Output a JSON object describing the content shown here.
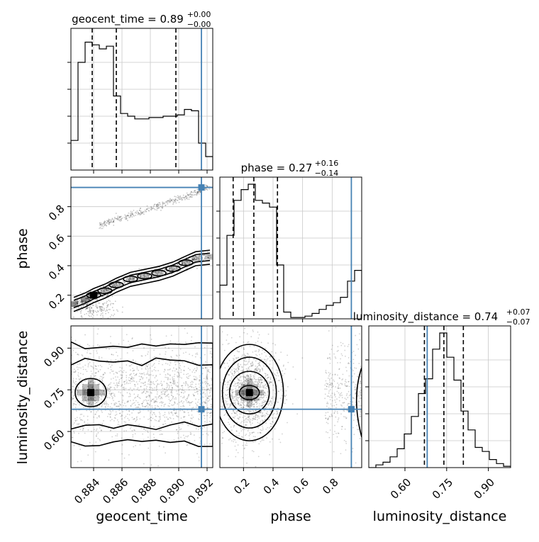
{
  "chart_data": {
    "type": "corner",
    "parameters": [
      "geocent_time",
      "phase",
      "luminosity_distance"
    ],
    "axis_labels": [
      "geocent_time",
      "phase",
      "luminosity_distance"
    ],
    "truths": {
      "geocent_time": 0.8916,
      "phase": 0.93,
      "luminosity_distance": 0.68
    },
    "truth_color": "#4682b4",
    "grid": true,
    "panels": [
      {
        "id": "hist-geocent_time",
        "row": 0,
        "col": 0,
        "kind": "histogram",
        "title": {
          "prefix": "geocent_time = 0.89",
          "sup": "+0.00",
          "sub": "−0.00"
        },
        "xlim": [
          0.8824,
          0.8924
        ],
        "bin_edges": [
          0.8824,
          0.8829,
          0.8834,
          0.8839,
          0.8844,
          0.8849,
          0.8854,
          0.8859,
          0.8864,
          0.8869,
          0.8874,
          0.8879,
          0.8884,
          0.8889,
          0.8894,
          0.8899,
          0.8904,
          0.8909,
          0.8914,
          0.8919,
          0.8924
        ],
        "counts": [
          0.22,
          0.8,
          0.95,
          0.93,
          0.9,
          0.92,
          0.55,
          0.42,
          0.4,
          0.38,
          0.38,
          0.39,
          0.39,
          0.4,
          0.4,
          0.41,
          0.45,
          0.44,
          0.2,
          0.1
        ],
        "quantiles": [
          0.8839,
          0.8856,
          0.8898
        ]
      },
      {
        "id": "hist-phase",
        "row": 1,
        "col": 1,
        "kind": "histogram",
        "title": {
          "prefix": "phase = 0.27",
          "sup": "+0.16",
          "sub": "−0.14"
        },
        "xlim": [
          0.04,
          1.0
        ],
        "bin_edges": [
          0.04,
          0.088,
          0.136,
          0.184,
          0.232,
          0.28,
          0.328,
          0.376,
          0.424,
          0.472,
          0.52,
          0.568,
          0.616,
          0.664,
          0.712,
          0.76,
          0.808,
          0.856,
          0.904,
          0.952,
          1.0
        ],
        "counts": [
          0.25,
          0.62,
          0.88,
          0.96,
          1.0,
          0.88,
          0.86,
          0.83,
          0.4,
          0.05,
          0.01,
          0.01,
          0.02,
          0.04,
          0.07,
          0.1,
          0.12,
          0.16,
          0.28,
          0.36
        ],
        "quantiles": [
          0.13,
          0.27,
          0.43
        ],
        "xticks": [
          0.2,
          0.4,
          0.6,
          0.8
        ]
      },
      {
        "id": "hist-luminosity_distance",
        "row": 2,
        "col": 2,
        "kind": "histogram",
        "title": {
          "prefix": "luminosity_distance = 0.74",
          "sup": "+0.07",
          "sub": "−0.07"
        },
        "xlim": [
          0.47,
          0.98
        ],
        "bin_edges": [
          0.47,
          0.4955,
          0.521,
          0.5465,
          0.572,
          0.5975,
          0.623,
          0.6485,
          0.674,
          0.6995,
          0.725,
          0.7505,
          0.776,
          0.8015,
          0.827,
          0.8525,
          0.878,
          0.9035,
          0.929,
          0.9545,
          0.98
        ],
        "counts": [
          0.0,
          0.02,
          0.04,
          0.08,
          0.14,
          0.25,
          0.38,
          0.55,
          0.66,
          0.88,
          1.0,
          0.82,
          0.65,
          0.42,
          0.28,
          0.15,
          0.12,
          0.06,
          0.03,
          0.01
        ],
        "quantiles": [
          0.67,
          0.74,
          0.81
        ],
        "xticks": [
          0.6,
          0.75,
          0.9
        ],
        "xticklabels": [
          "0.60",
          "0.75",
          "0.90"
        ]
      },
      {
        "id": "2d-phase-vs-geocent_time",
        "row": 1,
        "col": 0,
        "kind": "2d",
        "xlim": [
          0.8824,
          0.8924
        ],
        "ylim": [
          0.04,
          1.0
        ],
        "yticks": [
          0.2,
          0.4,
          0.6,
          0.8
        ],
        "peak": [
          0.884,
          0.2
        ],
        "ridge": [
          [
            0.8826,
            0.14
          ],
          [
            0.8834,
            0.17
          ],
          [
            0.884,
            0.2
          ],
          [
            0.8848,
            0.23
          ],
          [
            0.8856,
            0.27
          ],
          [
            0.8866,
            0.31
          ],
          [
            0.8876,
            0.33
          ],
          [
            0.8886,
            0.35
          ],
          [
            0.8896,
            0.38
          ],
          [
            0.8905,
            0.42
          ],
          [
            0.8912,
            0.45
          ],
          [
            0.8922,
            0.46
          ]
        ],
        "upper_band": [
          [
            0.8844,
            0.67
          ],
          [
            0.8856,
            0.72
          ],
          [
            0.887,
            0.75
          ],
          [
            0.8884,
            0.8
          ],
          [
            0.8898,
            0.85
          ],
          [
            0.8912,
            0.89
          ],
          [
            0.8922,
            0.94
          ]
        ]
      },
      {
        "id": "2d-luminosity_distance-vs-geocent_time",
        "row": 2,
        "col": 0,
        "kind": "2d",
        "xlim": [
          0.8824,
          0.8924
        ],
        "ylim": [
          0.47,
          0.98
        ],
        "xticks": [
          0.884,
          0.886,
          0.888,
          0.89,
          0.892
        ],
        "xticklabels": [
          "0.884",
          "0.886",
          "0.888",
          "0.890",
          "0.892"
        ],
        "yticks": [
          0.6,
          0.75,
          0.9
        ],
        "yticklabels": [
          "0.60",
          "0.75",
          "0.90"
        ],
        "peak": [
          0.8838,
          0.74
        ]
      },
      {
        "id": "2d-luminosity_distance-vs-phase",
        "row": 2,
        "col": 1,
        "kind": "2d",
        "xlim": [
          0.04,
          1.0
        ],
        "ylim": [
          0.47,
          0.98
        ],
        "xticks": [
          0.2,
          0.4,
          0.6,
          0.8
        ],
        "xticklabels": [
          "0.2",
          "0.4",
          "0.6",
          "0.8"
        ],
        "peak": [
          0.24,
          0.74
        ]
      }
    ]
  }
}
